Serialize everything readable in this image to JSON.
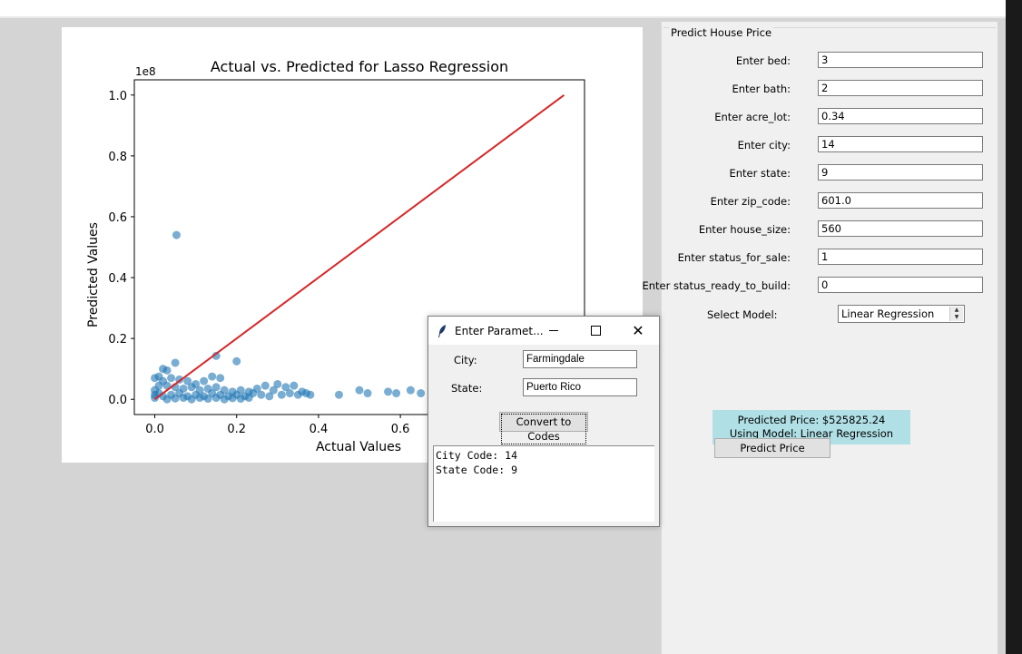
{
  "chart_data": {
    "type": "scatter",
    "title": "Actual vs. Predicted for Lasso Regression",
    "xlabel": "Actual Values",
    "ylabel": "Predicted Values",
    "y_offset_text": "1e8",
    "xlim": [
      -0.05,
      1.05
    ],
    "ylim": [
      -0.05,
      1.05
    ],
    "x_ticks": [
      0.0,
      0.2,
      0.4,
      0.6
    ],
    "x_tick_labels": [
      "0.0",
      "0.2",
      "0.4",
      "0.6"
    ],
    "y_ticks": [
      0.0,
      0.2,
      0.4,
      0.6,
      0.8,
      1.0
    ],
    "y_tick_labels": [
      "0.0",
      "0.2",
      "0.4",
      "0.6",
      "0.8",
      "1.0"
    ],
    "grid": false,
    "point_color": "#1f77b4",
    "line_color": "#d62728",
    "reference_line": {
      "x": [
        0.0,
        1.0
      ],
      "y": [
        0.0,
        1.0
      ]
    },
    "points": [
      {
        "x": 0.053,
        "y": 0.54
      },
      {
        "x": 0.15,
        "y": 0.143
      },
      {
        "x": 0.05,
        "y": 0.12
      },
      {
        "x": 0.2,
        "y": 0.125
      },
      {
        "x": 0.02,
        "y": 0.1
      },
      {
        "x": 0.03,
        "y": 0.095
      },
      {
        "x": 0.0,
        "y": 0.07
      },
      {
        "x": 0.01,
        "y": 0.075
      },
      {
        "x": 0.02,
        "y": 0.06
      },
      {
        "x": 0.04,
        "y": 0.07
      },
      {
        "x": 0.06,
        "y": 0.065
      },
      {
        "x": 0.08,
        "y": 0.06
      },
      {
        "x": 0.1,
        "y": 0.05
      },
      {
        "x": 0.12,
        "y": 0.06
      },
      {
        "x": 0.14,
        "y": 0.075
      },
      {
        "x": 0.16,
        "y": 0.07
      },
      {
        "x": 0.03,
        "y": 0.045
      },
      {
        "x": 0.05,
        "y": 0.04
      },
      {
        "x": 0.07,
        "y": 0.035
      },
      {
        "x": 0.09,
        "y": 0.04
      },
      {
        "x": 0.11,
        "y": 0.03
      },
      {
        "x": 0.13,
        "y": 0.035
      },
      {
        "x": 0.15,
        "y": 0.04
      },
      {
        "x": 0.17,
        "y": 0.03
      },
      {
        "x": 0.19,
        "y": 0.025
      },
      {
        "x": 0.21,
        "y": 0.03
      },
      {
        "x": 0.23,
        "y": 0.025
      },
      {
        "x": 0.25,
        "y": 0.035
      },
      {
        "x": 0.27,
        "y": 0.045
      },
      {
        "x": 0.29,
        "y": 0.03
      },
      {
        "x": 0.3,
        "y": 0.05
      },
      {
        "x": 0.32,
        "y": 0.04
      },
      {
        "x": 0.34,
        "y": 0.045
      },
      {
        "x": 0.36,
        "y": 0.025
      },
      {
        "x": 0.38,
        "y": 0.015
      },
      {
        "x": 0.01,
        "y": 0.02
      },
      {
        "x": 0.02,
        "y": 0.01
      },
      {
        "x": 0.04,
        "y": 0.015
      },
      {
        "x": 0.06,
        "y": 0.02
      },
      {
        "x": 0.08,
        "y": 0.01
      },
      {
        "x": 0.1,
        "y": 0.015
      },
      {
        "x": 0.12,
        "y": 0.01
      },
      {
        "x": 0.14,
        "y": 0.02
      },
      {
        "x": 0.16,
        "y": 0.015
      },
      {
        "x": 0.18,
        "y": 0.01
      },
      {
        "x": 0.2,
        "y": 0.015
      },
      {
        "x": 0.22,
        "y": 0.01
      },
      {
        "x": 0.24,
        "y": 0.02
      },
      {
        "x": 0.26,
        "y": 0.015
      },
      {
        "x": 0.28,
        "y": 0.01
      },
      {
        "x": 0.31,
        "y": 0.015
      },
      {
        "x": 0.33,
        "y": 0.02
      },
      {
        "x": 0.35,
        "y": 0.015
      },
      {
        "x": 0.37,
        "y": 0.02
      },
      {
        "x": 0.0,
        "y": 0.005
      },
      {
        "x": 0.03,
        "y": 0.0
      },
      {
        "x": 0.05,
        "y": 0.003
      },
      {
        "x": 0.07,
        "y": 0.005
      },
      {
        "x": 0.09,
        "y": 0.0
      },
      {
        "x": 0.11,
        "y": 0.005
      },
      {
        "x": 0.13,
        "y": 0.002
      },
      {
        "x": 0.15,
        "y": 0.005
      },
      {
        "x": 0.17,
        "y": 0.0
      },
      {
        "x": 0.19,
        "y": 0.004
      },
      {
        "x": 0.21,
        "y": 0.002
      },
      {
        "x": 0.23,
        "y": 0.005
      },
      {
        "x": 0.0,
        "y": 0.03
      },
      {
        "x": 0.01,
        "y": 0.045
      },
      {
        "x": 0.0,
        "y": 0.015
      },
      {
        "x": 0.45,
        "y": 0.015
      },
      {
        "x": 0.5,
        "y": 0.03
      },
      {
        "x": 0.52,
        "y": 0.02
      },
      {
        "x": 0.57,
        "y": 0.025
      },
      {
        "x": 0.59,
        "y": 0.02
      },
      {
        "x": 0.625,
        "y": 0.03
      },
      {
        "x": 0.65,
        "y": 0.02
      }
    ]
  },
  "form": {
    "title": "Predict House Price",
    "fields": [
      {
        "label": "Enter bed:",
        "value": "3"
      },
      {
        "label": "Enter bath:",
        "value": "2"
      },
      {
        "label": "Enter acre_lot:",
        "value": "0.34"
      },
      {
        "label": "Enter city:",
        "value": "14"
      },
      {
        "label": "Enter state:",
        "value": "9"
      },
      {
        "label": "Enter zip_code:",
        "value": "601.0"
      },
      {
        "label": "Enter house_size:",
        "value": "560"
      },
      {
        "label": "Enter status_for_sale:",
        "value": "1"
      },
      {
        "label": "Enter status_ready_to_build:",
        "value": "0"
      }
    ],
    "select_label": "Select Model:",
    "select_value": "Linear Regression",
    "result_line1": "Predicted Price: $525825.24",
    "result_line2": "Using Model: Linear Regression",
    "result_color": "#b0e0e6",
    "predict_button": "Predict Price"
  },
  "dialog": {
    "title": "Enter Paramet...",
    "city_label": "City:",
    "city_value": "Farmingdale",
    "state_label": "State:",
    "state_value": "Puerto Rico",
    "convert_button": "Convert to Codes",
    "output_lines": [
      "City Code: 14",
      "State Code: 9"
    ]
  }
}
